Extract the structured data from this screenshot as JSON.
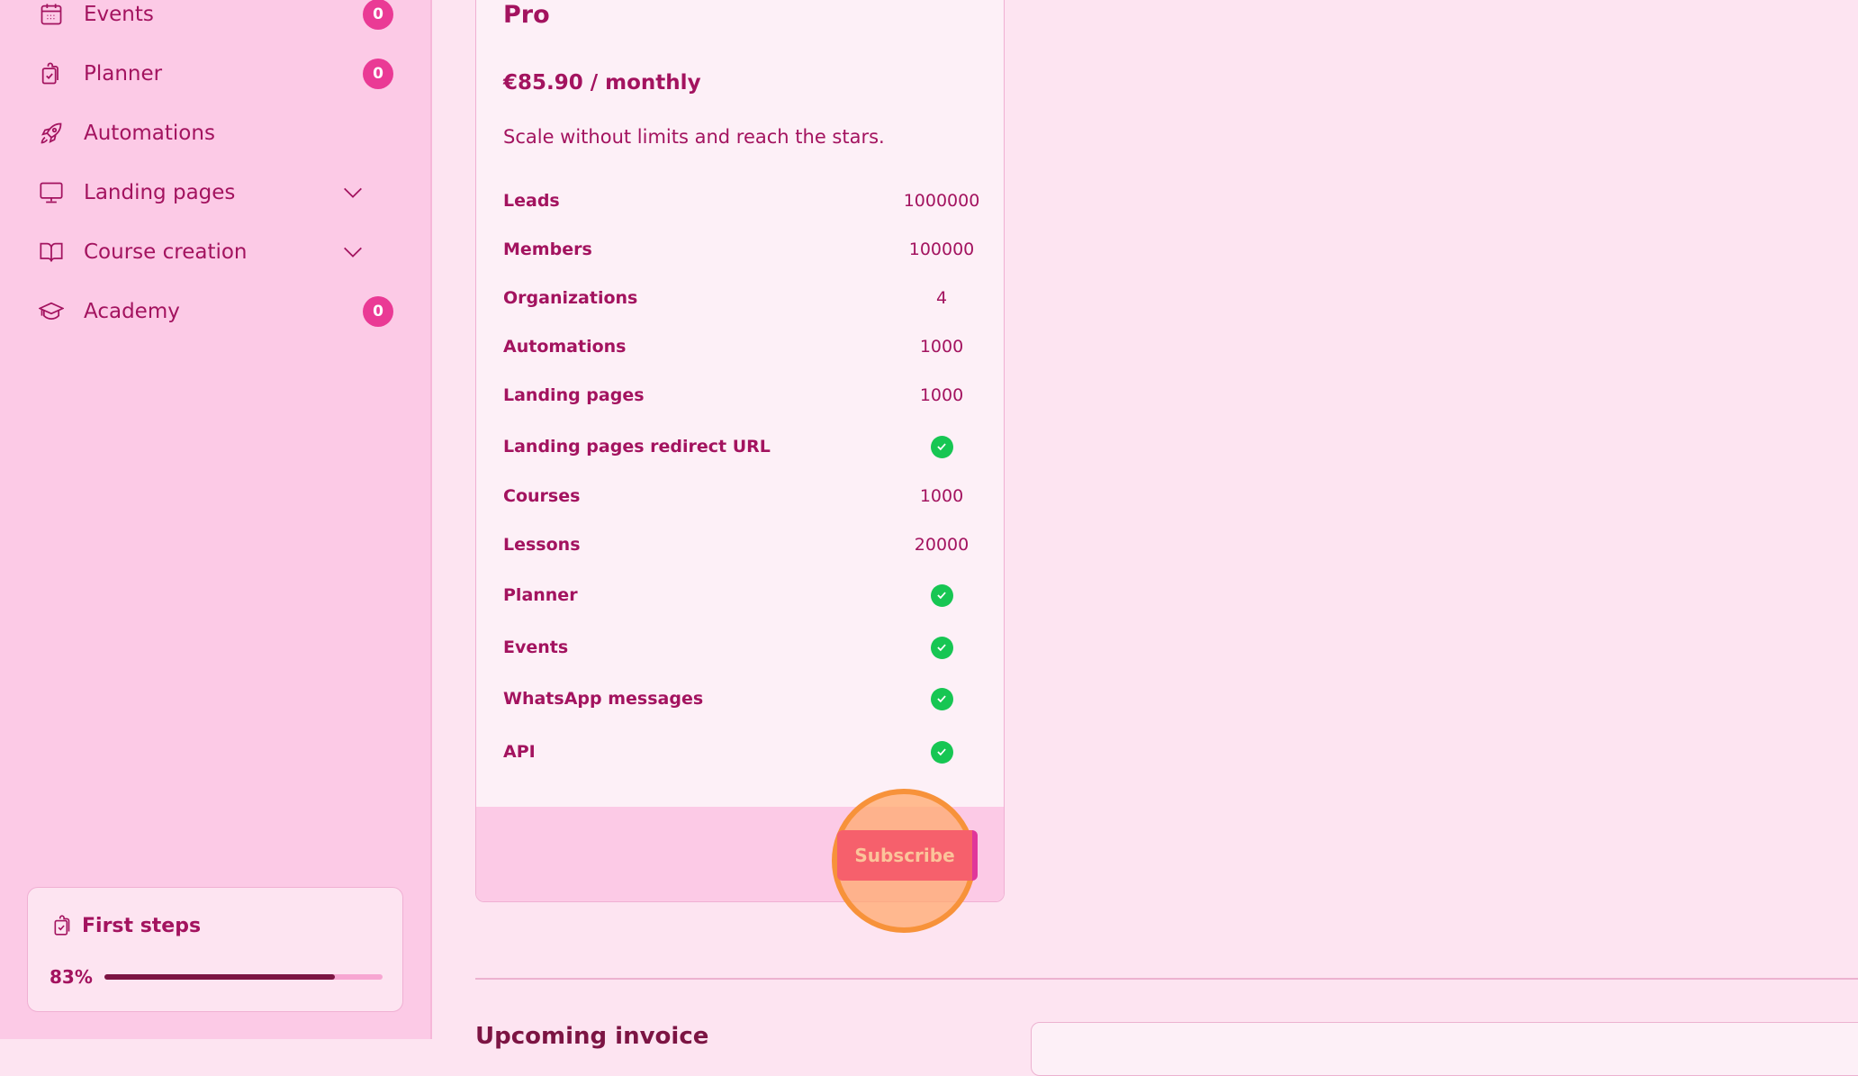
{
  "sidebar": {
    "items": [
      {
        "label": "Events",
        "icon": "calendar-icon",
        "badge": "0"
      },
      {
        "label": "Planner",
        "icon": "clipboard-check-icon",
        "badge": "0"
      },
      {
        "label": "Automations",
        "icon": "rocket-icon"
      },
      {
        "label": "Landing pages",
        "icon": "monitor-icon",
        "expandable": true
      },
      {
        "label": "Course creation",
        "icon": "book-open-icon",
        "expandable": true
      },
      {
        "label": "Academy",
        "icon": "graduation-cap-icon",
        "badge": "0"
      }
    ],
    "first_steps": {
      "title": "First steps",
      "percent_label": "83%",
      "progress": 0.83
    }
  },
  "plan": {
    "name": "Pro",
    "price": "€85.90 / monthly",
    "description": "Scale without limits and reach the stars.",
    "features": [
      {
        "label": "Leads",
        "value": "1000000"
      },
      {
        "label": "Members",
        "value": "100000"
      },
      {
        "label": "Organizations",
        "value": "4"
      },
      {
        "label": "Automations",
        "value": "1000"
      },
      {
        "label": "Landing pages",
        "value": "1000"
      },
      {
        "label": "Landing pages redirect URL",
        "check": true
      },
      {
        "label": "Courses",
        "value": "1000"
      },
      {
        "label": "Lessons",
        "value": "20000"
      },
      {
        "label": "Planner",
        "check": true
      },
      {
        "label": "Events",
        "check": true
      },
      {
        "label": "WhatsApp messages",
        "check": true
      },
      {
        "label": "API",
        "check": true
      }
    ],
    "subscribe_label": "Subscribe"
  },
  "invoices": {
    "title": "Upcoming invoice"
  },
  "colors": {
    "accent": "#e0369a",
    "text": "#a3135f",
    "check": "#17c653",
    "highlight": "#f7923a"
  }
}
